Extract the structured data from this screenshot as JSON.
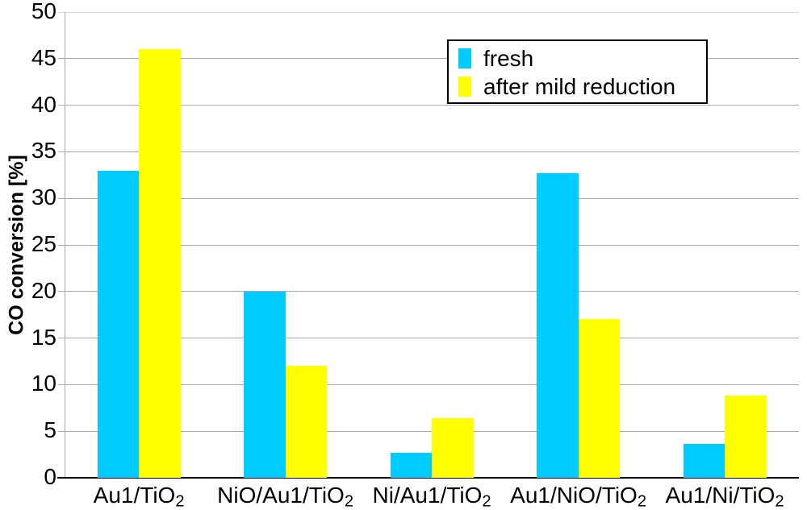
{
  "chart_data": {
    "type": "bar",
    "title": "",
    "xlabel": "",
    "ylabel": "CO conversion [%]",
    "ylim": [
      0,
      50
    ],
    "yticks": [
      0,
      5,
      10,
      15,
      20,
      25,
      30,
      35,
      40,
      45,
      50
    ],
    "grid": "horizontal",
    "legend_position": "inside-top-center",
    "categories": [
      "Au1/TiO2",
      "NiO/Au1/TiO2",
      "Ni/Au1/TiO2",
      "Au1/NiO/TiO2",
      "Au1/Ni/TiO2"
    ],
    "categories_display": [
      {
        "base": "Au1/TiO",
        "sub": "2"
      },
      {
        "base": "NiO/Au1/TiO",
        "sub": "2"
      },
      {
        "base": "Ni/Au1/TiO",
        "sub": "2"
      },
      {
        "base": "Au1/NiO/TiO",
        "sub": "2"
      },
      {
        "base": "Au1/Ni/TiO",
        "sub": "2"
      }
    ],
    "series": [
      {
        "name": "fresh",
        "color": "#00CCFF",
        "values": [
          33,
          20,
          2.7,
          32.7,
          3.6
        ]
      },
      {
        "name": "after mild reduction",
        "color": "#FFFF00",
        "values": [
          46,
          12,
          6.4,
          17,
          8.8
        ]
      }
    ],
    "colors": {
      "gridline": "#A8A8A8",
      "gridline_top": "#D8D8D8",
      "left_axis": "#A8A8A8",
      "bottom_axis": "#000000",
      "background": "#FFFFFF",
      "text": "#000000"
    }
  }
}
